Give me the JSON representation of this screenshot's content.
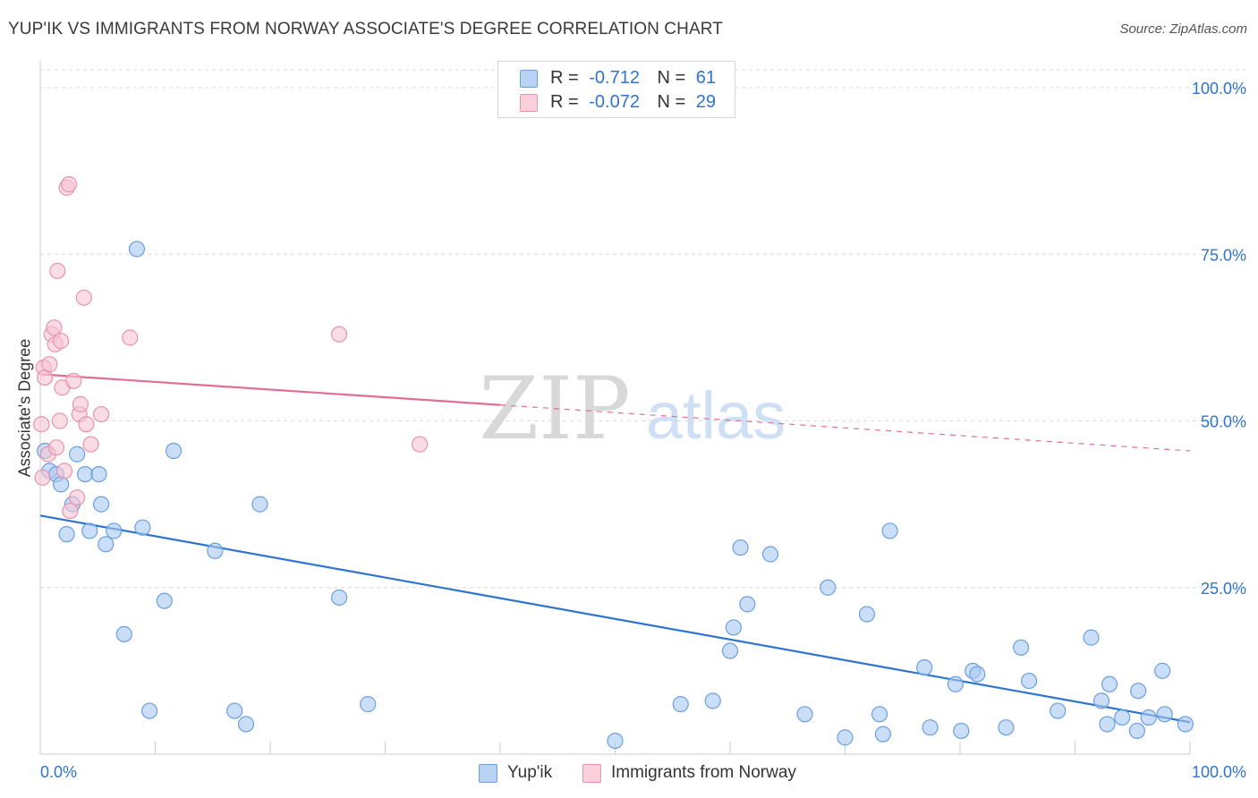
{
  "title": "YUP'IK VS IMMIGRANTS FROM NORWAY ASSOCIATE'S DEGREE CORRELATION CHART",
  "source": "Source: ZipAtlas.com",
  "watermark": {
    "zip": "ZIP",
    "atlas": "atlas"
  },
  "legend": {
    "series1": {
      "r_label": "R =",
      "r_value": "-0.712",
      "n_label": "N =",
      "n_value": "61"
    },
    "series2": {
      "r_label": "R =",
      "r_value": "-0.072",
      "n_label": "N =",
      "n_value": "29"
    }
  },
  "bottom_legend": {
    "series1": "Yup'ik",
    "series2": "Immigrants from Norway"
  },
  "chart_data": {
    "type": "scatter",
    "title": "YUP'IK VS IMMIGRANTS FROM NORWAY ASSOCIATE'S DEGREE CORRELATION CHART",
    "xlabel": "",
    "ylabel": "Associate's Degree",
    "xlim": [
      0,
      100
    ],
    "ylim": [
      0,
      100
    ],
    "x_tick_labels": [
      "0.0%",
      "100.0%"
    ],
    "y_tick_labels": [
      "100.0%",
      "75.0%",
      "50.0%",
      "25.0%"
    ],
    "y_ticks": [
      100,
      75,
      50,
      25
    ],
    "x_minor_ticks": [
      0,
      10,
      20,
      30,
      40,
      50,
      60,
      70,
      80,
      90,
      100
    ],
    "grid": true,
    "colors": {
      "series1_fill": "#a9c8f2",
      "series1_stroke": "#6a9fe0",
      "series1_line": "#2f74cf",
      "series2_fill": "#f7c4d3",
      "series2_stroke": "#e893ad",
      "series2_line": "#e26d95",
      "axis_label": "#2f74cf",
      "grid": "#d9d9d9"
    },
    "series": [
      {
        "name": "Yup'ik",
        "r": -0.712,
        "n": 61,
        "trend": {
          "x0": 0,
          "y0": 35.8,
          "x1": 100,
          "y1": 4.8,
          "solid_until": 100
        },
        "points": [
          [
            0.4,
            45.5
          ],
          [
            0.8,
            42.5
          ],
          [
            1.4,
            42.0
          ],
          [
            1.8,
            40.5
          ],
          [
            2.3,
            33.0
          ],
          [
            2.8,
            37.5
          ],
          [
            3.2,
            45.0
          ],
          [
            3.9,
            42.0
          ],
          [
            4.3,
            33.5
          ],
          [
            5.1,
            42.0
          ],
          [
            5.3,
            37.5
          ],
          [
            5.7,
            31.5
          ],
          [
            6.4,
            33.5
          ],
          [
            7.3,
            18.0
          ],
          [
            8.4,
            75.8
          ],
          [
            8.9,
            34.0
          ],
          [
            9.5,
            6.5
          ],
          [
            10.8,
            23.0
          ],
          [
            11.6,
            45.5
          ],
          [
            15.2,
            30.5
          ],
          [
            16.9,
            6.5
          ],
          [
            17.9,
            4.5
          ],
          [
            19.1,
            37.5
          ],
          [
            26.0,
            23.5
          ],
          [
            28.5,
            7.5
          ],
          [
            50.0,
            2.0
          ],
          [
            55.7,
            7.5
          ],
          [
            58.5,
            8.0
          ],
          [
            60.0,
            15.5
          ],
          [
            60.3,
            19.0
          ],
          [
            60.9,
            31.0
          ],
          [
            61.5,
            22.5
          ],
          [
            63.5,
            30.0
          ],
          [
            66.5,
            6.0
          ],
          [
            68.5,
            25.0
          ],
          [
            70.0,
            2.5
          ],
          [
            71.9,
            21.0
          ],
          [
            73.0,
            6.0
          ],
          [
            73.3,
            3.0
          ],
          [
            73.9,
            33.5
          ],
          [
            76.9,
            13.0
          ],
          [
            77.4,
            4.0
          ],
          [
            79.6,
            10.5
          ],
          [
            80.1,
            3.5
          ],
          [
            81.1,
            12.5
          ],
          [
            81.5,
            12.0
          ],
          [
            84.0,
            4.0
          ],
          [
            85.3,
            16.0
          ],
          [
            86.0,
            11.0
          ],
          [
            88.5,
            6.5
          ],
          [
            91.4,
            17.5
          ],
          [
            92.3,
            8.0
          ],
          [
            92.8,
            4.5
          ],
          [
            93.0,
            10.5
          ],
          [
            94.1,
            5.5
          ],
          [
            95.4,
            3.5
          ],
          [
            95.5,
            9.5
          ],
          [
            96.4,
            5.5
          ],
          [
            97.6,
            12.5
          ],
          [
            97.8,
            6.0
          ],
          [
            99.6,
            4.5
          ]
        ]
      },
      {
        "name": "Immigrants from Norway",
        "r": -0.072,
        "n": 29,
        "trend": {
          "x0": 0,
          "y0": 57.0,
          "x1": 100,
          "y1": 45.5,
          "solid_until": 40
        },
        "points": [
          [
            0.1,
            49.5
          ],
          [
            0.3,
            58.0
          ],
          [
            0.4,
            56.5
          ],
          [
            0.7,
            45.0
          ],
          [
            0.8,
            58.5
          ],
          [
            1.0,
            63.0
          ],
          [
            1.2,
            64.0
          ],
          [
            1.3,
            61.5
          ],
          [
            1.4,
            46.0
          ],
          [
            1.5,
            72.5
          ],
          [
            1.7,
            50.0
          ],
          [
            1.8,
            62.0
          ],
          [
            1.9,
            55.0
          ],
          [
            2.1,
            42.5
          ],
          [
            2.3,
            85.0
          ],
          [
            2.5,
            85.5
          ],
          [
            2.6,
            36.5
          ],
          [
            2.9,
            56.0
          ],
          [
            3.2,
            38.5
          ],
          [
            3.4,
            51.0
          ],
          [
            3.5,
            52.5
          ],
          [
            3.8,
            68.5
          ],
          [
            4.0,
            49.5
          ],
          [
            4.4,
            46.5
          ],
          [
            5.3,
            51.0
          ],
          [
            7.8,
            62.5
          ],
          [
            26.0,
            63.0
          ],
          [
            33.0,
            46.5
          ],
          [
            0.2,
            41.5
          ]
        ]
      }
    ]
  }
}
